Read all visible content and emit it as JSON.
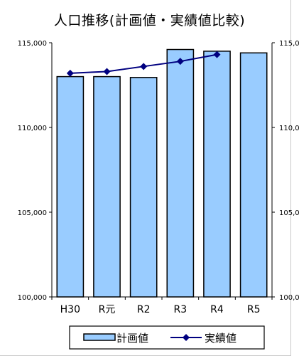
{
  "chart_data": {
    "type": "bar",
    "title": "人口推移(計画値・実績値比較)",
    "categories": [
      "H30",
      "R元",
      "R2",
      "R3",
      "R4",
      "R5"
    ],
    "series": [
      {
        "name": "計画値",
        "type": "bar",
        "values": [
          113000,
          113000,
          112950,
          114600,
          114500,
          114400
        ]
      },
      {
        "name": "実績値",
        "type": "line",
        "values": [
          113200,
          113300,
          113600,
          113900,
          114300,
          null
        ]
      }
    ],
    "ylim": [
      100000,
      115000
    ],
    "yticks": [
      "100,000",
      "105,000",
      "110,000",
      "115,000"
    ],
    "yticks_right": [
      "100,0",
      "105,0",
      "110,0",
      "115,0"
    ],
    "colors": {
      "bar_fill": "#99ccff",
      "bar_stroke": "#000000",
      "line": "#000080"
    },
    "legend_position": "bottom"
  }
}
